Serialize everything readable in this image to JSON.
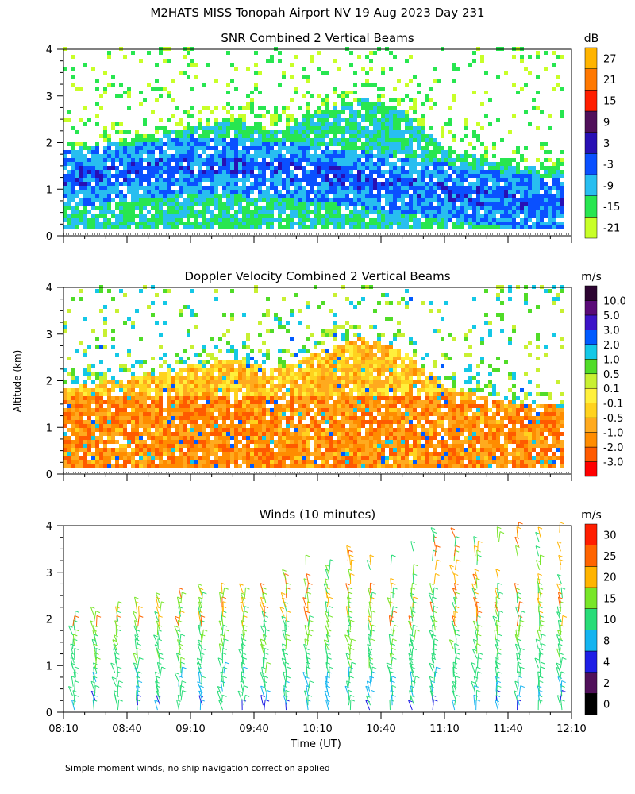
{
  "figure": {
    "title": "M2HATS MISS Tonopah Airport NV  19 Aug 2023 Day 231",
    "ylabel": "Altitude (km)",
    "xlabel": "Time (UT)",
    "footnote": "Simple moment winds, no ship navigation correction applied"
  },
  "chart_data": [
    {
      "type": "heatmap",
      "title": "SNR Combined 2 Vertical Beams",
      "colorbar_unit": "dB",
      "xlabel": "Time (UT)",
      "ylabel": "Altitude (km)",
      "x_ticks": [
        "08:10",
        "08:40",
        "09:10",
        "09:40",
        "10:10",
        "10:40",
        "11:10",
        "11:40",
        "12:10"
      ],
      "xlim": [
        "08:10",
        "12:10"
      ],
      "y_ticks": [
        0,
        1,
        2,
        3,
        4
      ],
      "ylim": [
        0,
        4
      ],
      "color_levels": [
        "-21",
        "-15",
        "-9",
        "-3",
        "3",
        "9",
        "15",
        "21",
        "27"
      ],
      "colors": [
        "#c8ff28",
        "#28e650",
        "#28bef0",
        "#0a50ff",
        "#2810b4",
        "#50105a",
        "#ff1e00",
        "#ff7800",
        "#ffb400"
      ],
      "echo_top_km": [
        {
          "time": "08:10",
          "alt": 1.8
        },
        {
          "time": "08:40",
          "alt": 2.0
        },
        {
          "time": "09:10",
          "alt": 2.3
        },
        {
          "time": "09:30",
          "alt": 2.4
        },
        {
          "time": "09:50",
          "alt": 2.2
        },
        {
          "time": "10:10",
          "alt": 2.6
        },
        {
          "time": "10:30",
          "alt": 2.9
        },
        {
          "time": "10:50",
          "alt": 2.6
        },
        {
          "time": "11:10",
          "alt": 1.8
        },
        {
          "time": "11:40",
          "alt": 1.5
        },
        {
          "time": "12:05",
          "alt": 1.4
        }
      ],
      "strong_layer_km": [
        {
          "time": "08:10",
          "alt": 1.2
        },
        {
          "time": "08:40",
          "alt": 1.3
        },
        {
          "time": "09:10",
          "alt": 1.5
        },
        {
          "time": "09:40",
          "alt": 1.4
        },
        {
          "time": "10:10",
          "alt": 1.3
        },
        {
          "time": "10:40",
          "alt": 1.1
        },
        {
          "time": "11:10",
          "alt": 0.9
        },
        {
          "time": "11:40",
          "alt": 0.7
        },
        {
          "time": "12:05",
          "alt": 0.6
        }
      ]
    },
    {
      "type": "heatmap",
      "title": "Doppler Velocity Combined 2 Vertical Beams",
      "colorbar_unit": "m/s",
      "xlabel": "Time (UT)",
      "ylabel": "Altitude (km)",
      "x_ticks": [
        "08:10",
        "08:40",
        "09:10",
        "09:40",
        "10:10",
        "10:40",
        "11:10",
        "11:40",
        "12:10"
      ],
      "xlim": [
        "08:10",
        "12:10"
      ],
      "y_ticks": [
        0,
        1,
        2,
        3,
        4
      ],
      "ylim": [
        0,
        4
      ],
      "color_levels": [
        "-3.0",
        "-2.0",
        "-1.0",
        "-0.5",
        "-0.1",
        "0.1",
        "0.5",
        "1.0",
        "2.0",
        "3.0",
        "5.0",
        "10.0"
      ],
      "colors": [
        "#ff0000",
        "#ff5a00",
        "#ff8c00",
        "#ffaa1e",
        "#ffd21e",
        "#fff03c",
        "#c8f032",
        "#50dc28",
        "#14c8e6",
        "#005aff",
        "#3c14c8",
        "#5a0a78",
        "#2d0532"
      ],
      "echo_top_km": [
        {
          "time": "08:10",
          "alt": 1.8
        },
        {
          "time": "08:40",
          "alt": 2.0
        },
        {
          "time": "09:10",
          "alt": 2.3
        },
        {
          "time": "09:30",
          "alt": 2.4
        },
        {
          "time": "09:50",
          "alt": 2.2
        },
        {
          "time": "10:10",
          "alt": 2.6
        },
        {
          "time": "10:30",
          "alt": 2.9
        },
        {
          "time": "10:50",
          "alt": 2.6
        },
        {
          "time": "11:10",
          "alt": 1.8
        },
        {
          "time": "11:40",
          "alt": 1.5
        },
        {
          "time": "12:05",
          "alt": 1.4
        }
      ]
    },
    {
      "type": "scatter",
      "title": "Winds (10 minutes)",
      "colorbar_unit": "m/s",
      "xlabel": "Time (UT)",
      "ylabel": "Altitude (km)",
      "x_ticks": [
        "08:10",
        "08:40",
        "09:10",
        "09:40",
        "10:10",
        "10:40",
        "11:10",
        "11:40",
        "12:10"
      ],
      "xlim": [
        "08:10",
        "12:10"
      ],
      "y_ticks": [
        0,
        1,
        2,
        3,
        4
      ],
      "ylim": [
        0,
        4
      ],
      "color_levels": [
        "0",
        "2",
        "4",
        "8",
        "10",
        "15",
        "20",
        "25",
        "30"
      ],
      "colors": [
        "#000000",
        "#50105a",
        "#1e1ee6",
        "#14b4f0",
        "#28dc78",
        "#78e628",
        "#ffb400",
        "#ff6400",
        "#ff1e00"
      ],
      "profile_interval_minutes": 10,
      "profile_top_km": [
        {
          "time": "08:10",
          "alt": 2.0
        },
        {
          "time": "09:10",
          "alt": 2.6
        },
        {
          "time": "09:50",
          "alt": 2.9
        },
        {
          "time": "10:30",
          "alt": 3.6
        },
        {
          "time": "11:10",
          "alt": 3.8
        },
        {
          "time": "11:50",
          "alt": 3.9
        },
        {
          "time": "12:05",
          "alt": 4.0
        }
      ]
    }
  ]
}
